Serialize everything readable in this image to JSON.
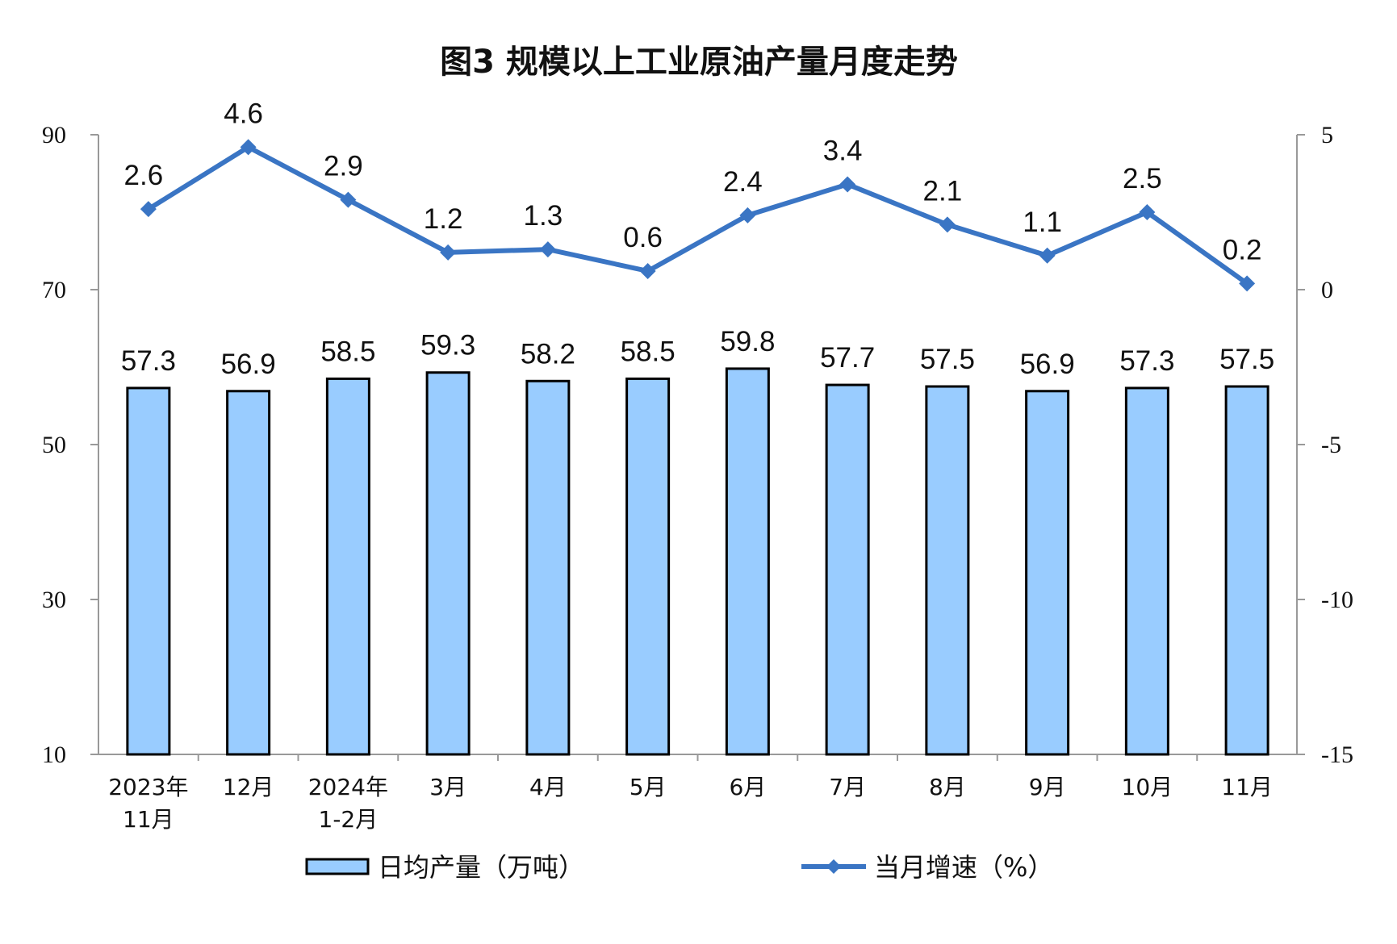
{
  "chart_data": {
    "type": "bar+line",
    "title": "图3  规模以上工业原油产量月度走势",
    "categories": [
      [
        "2023年",
        "11月"
      ],
      [
        "12月"
      ],
      [
        "2024年",
        "1-2月"
      ],
      [
        "3月"
      ],
      [
        "4月"
      ],
      [
        "5月"
      ],
      [
        "6月"
      ],
      [
        "7月"
      ],
      [
        "8月"
      ],
      [
        "9月"
      ],
      [
        "10月"
      ],
      [
        "11月"
      ]
    ],
    "series": [
      {
        "name": "日均产量（万吨）",
        "type": "bar",
        "axis": "left",
        "values": [
          57.3,
          56.9,
          58.5,
          59.3,
          58.2,
          58.5,
          59.8,
          57.7,
          57.5,
          56.9,
          57.3,
          57.5
        ],
        "color": "#99CCFF",
        "labels": [
          "57.3",
          "56.9",
          "58.5",
          "59.3",
          "58.2",
          "58.5",
          "59.8",
          "57.7",
          "57.5",
          "56.9",
          "57.3",
          "57.5"
        ]
      },
      {
        "name": "当月增速（%）",
        "type": "line",
        "axis": "right",
        "values": [
          2.6,
          4.6,
          2.9,
          1.2,
          1.3,
          0.6,
          2.4,
          3.4,
          2.1,
          1.1,
          2.5,
          0.2
        ],
        "color": "#3A75C4",
        "labels": [
          "2.6",
          "4.6",
          "2.9",
          "1.2",
          "1.3",
          "0.6",
          "2.4",
          "3.4",
          "2.1",
          "1.1",
          "2.5",
          "0.2"
        ]
      }
    ],
    "left_axis": {
      "ylim": [
        10,
        90
      ],
      "ticks": [
        "10",
        "30",
        "50",
        "70",
        "90"
      ]
    },
    "right_axis": {
      "ylim": [
        -15,
        5
      ],
      "ticks": [
        "-15",
        "-10",
        "-5",
        "0",
        "5"
      ]
    },
    "grid": false,
    "legend": "bottom"
  }
}
